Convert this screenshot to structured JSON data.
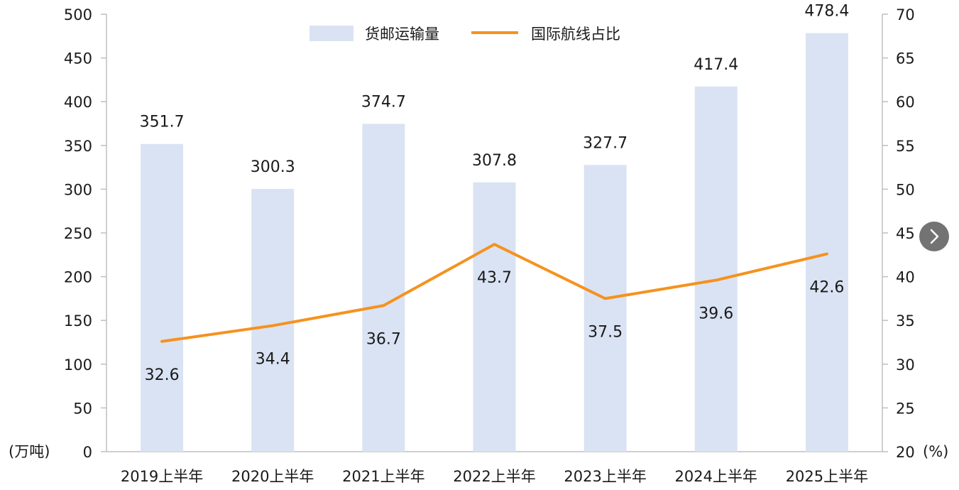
{
  "chart_data": {
    "type": "bar+line",
    "categories": [
      "2019上半年",
      "2020上半年",
      "2021上半年",
      "2022上半年",
      "2023上半年",
      "2024上半年",
      "2025上半年"
    ],
    "series": [
      {
        "name": "货邮运输量",
        "type": "bar",
        "axis": "left",
        "values": [
          351.7,
          300.3,
          374.7,
          307.8,
          327.7,
          417.4,
          478.4
        ],
        "labels": [
          "351.7",
          "300.3",
          "374.7",
          "307.8",
          "327.7",
          "417.4",
          "478.4"
        ]
      },
      {
        "name": "国际航线占比",
        "type": "line",
        "axis": "right",
        "values": [
          32.6,
          34.4,
          36.7,
          43.7,
          37.5,
          39.6,
          42.6
        ],
        "labels": [
          "32.6",
          "34.4",
          "36.7",
          "43.7",
          "37.5",
          "39.6",
          "42.6"
        ]
      }
    ],
    "y_left": {
      "unit": "(万吨)",
      "lim": [
        0,
        500
      ],
      "ticks": [
        "0",
        "50",
        "100",
        "150",
        "200",
        "250",
        "300",
        "350",
        "400",
        "450",
        "500"
      ]
    },
    "y_right": {
      "unit": "(%)",
      "lim": [
        20,
        70
      ],
      "ticks": [
        "20",
        "25",
        "30",
        "35",
        "40",
        "45",
        "50",
        "55",
        "60",
        "65",
        "70"
      ]
    },
    "grid": false,
    "legend": "top-center",
    "colors": {
      "bar": "#dae3f3",
      "line": "#f5921e",
      "axis": "#bfbfbf"
    }
  },
  "controls": {
    "next_icon": "chevron-right-icon"
  }
}
